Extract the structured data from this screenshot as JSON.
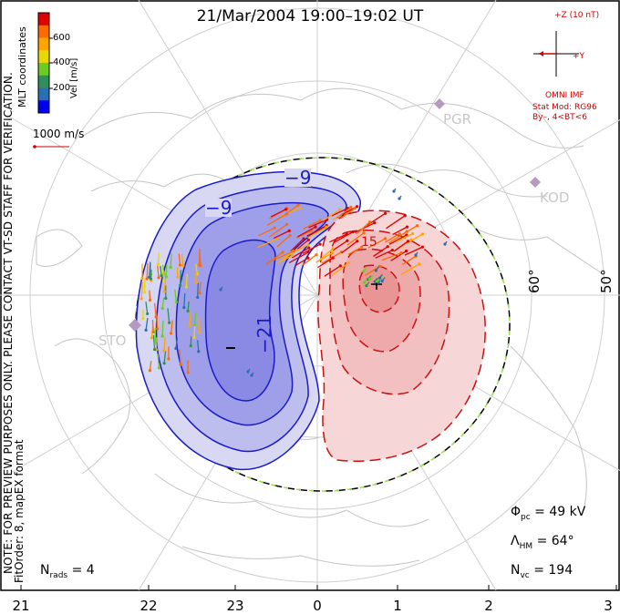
{
  "title": "21/Mar/2004 19:00–19:02 UT",
  "legend": {
    "ticks": [
      "600",
      "400",
      "200"
    ],
    "unit": "Vel [m/s]",
    "colors": [
      "#e00000",
      "#ff6a00",
      "#ffa500",
      "#e6d800",
      "#6dcc22",
      "#2f8f5a",
      "#2a6fb0",
      "#0000ee"
    ]
  },
  "coord_label": "MLT coordinates",
  "note": "NOTE: FOR PREVIEW PURPOSES ONLY. PLEASE CONTACT VT-SD STAFF FOR VERIFICATION.",
  "fit_order": "FitOrder: 8,  mapEX format",
  "ref_vector": "1000 m/s",
  "imf": {
    "z_label": "+Z (10 nT)",
    "y_label": "+Y",
    "source": "OMNI IMF",
    "stat_mod": "Stat Mod: RG96",
    "condition": "By–, 4<BT<6"
  },
  "stations": [
    "PGR",
    "KOD",
    "STO"
  ],
  "latitude_labels": [
    "60°",
    "50°"
  ],
  "contour_labels": {
    "neg_outer": "−9",
    "neg_mid": "−9",
    "neg_min": "−21",
    "pos": "15"
  },
  "stats": {
    "phi_pc": "= 49 kV",
    "lambda_hm": "= 64°",
    "n_vc": "= 194",
    "n_rads": "= 4"
  },
  "mlt_labels": [
    "21",
    "22",
    "23",
    "0",
    "1",
    "2",
    "3"
  ]
}
